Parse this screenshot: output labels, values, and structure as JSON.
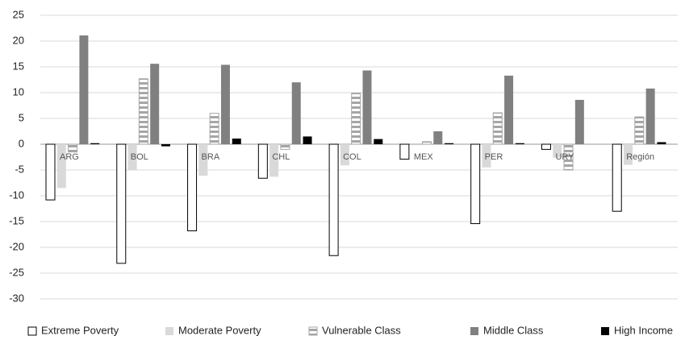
{
  "chart_data": {
    "type": "bar",
    "categories": [
      "ARG",
      "BOL",
      "BRA",
      "CHL",
      "COL",
      "MEX",
      "PER",
      "URY",
      "Región"
    ],
    "series": [
      {
        "name": "Extreme Poverty",
        "color": "#ffffff",
        "values": [
          -10.8,
          -23.1,
          -16.8,
          -6.6,
          -21.6,
          -2.9,
          -15.4,
          -1.0,
          -13.0
        ]
      },
      {
        "name": "Moderate Poverty",
        "color": "#d9d9d9",
        "values": [
          -8.5,
          -5.0,
          -6.1,
          -6.3,
          -4.1,
          0.0,
          -4.5,
          -2.6,
          -4.0
        ]
      },
      {
        "name": "Vulnerable Class",
        "color": "#a6a6a6",
        "pattern": "horizontal-stripes",
        "values": [
          -1.5,
          12.7,
          6.0,
          -1.0,
          9.9,
          0.5,
          6.1,
          -5.0,
          5.3
        ]
      },
      {
        "name": "Middle Class",
        "color": "#808080",
        "values": [
          21.1,
          15.6,
          15.4,
          12.0,
          14.3,
          2.5,
          13.3,
          8.6,
          10.8
        ]
      },
      {
        "name": "High Income",
        "color": "#000000",
        "values": [
          0.2,
          -0.4,
          1.1,
          1.5,
          1.0,
          0.2,
          0.2,
          0.0,
          0.4
        ]
      }
    ],
    "ylim": [
      -30,
      25
    ],
    "yticks": [
      -30,
      -25,
      -20,
      -15,
      -10,
      -5,
      0,
      5,
      10,
      15,
      20,
      25
    ],
    "grid": true,
    "legend": "bottom"
  }
}
